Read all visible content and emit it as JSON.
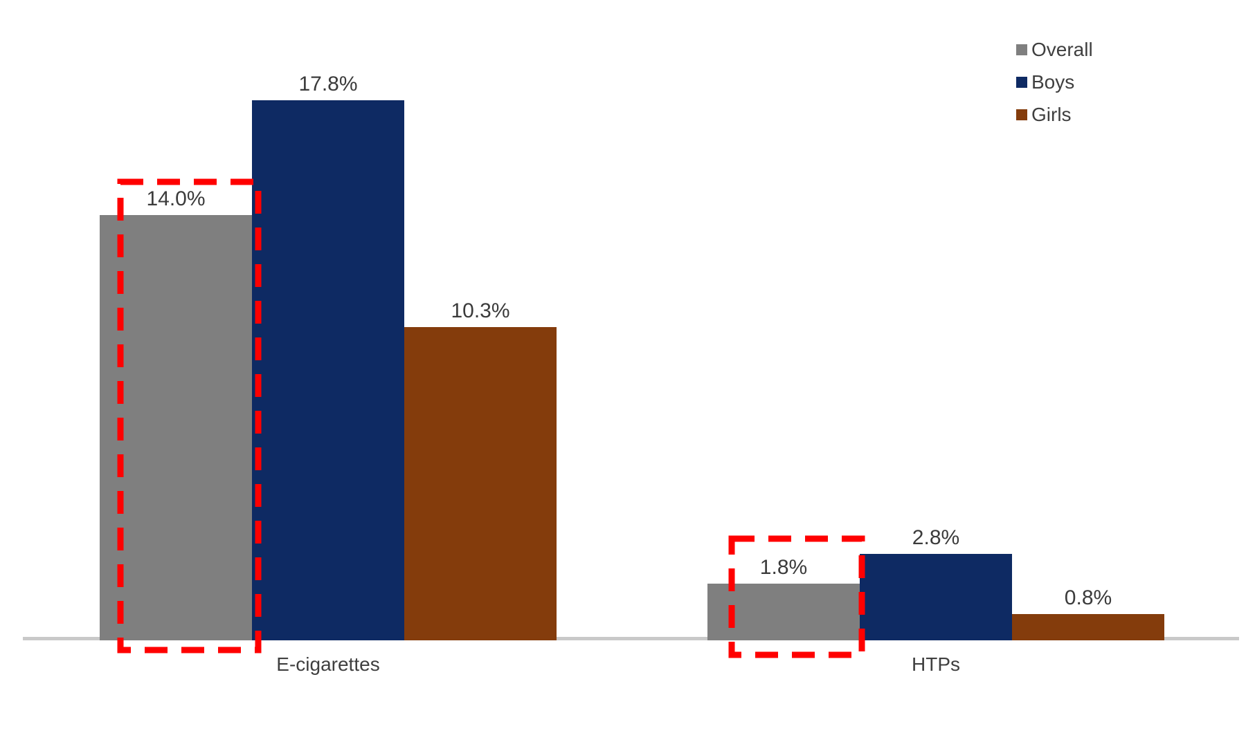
{
  "chart_data": {
    "type": "bar",
    "title": "",
    "xlabel": "",
    "ylabel": "",
    "categories": [
      "E-cigarettes",
      "HTPs"
    ],
    "series": [
      {
        "name": "Overall",
        "color": "#7f7f7f",
        "values": [
          14.0,
          1.8
        ],
        "labels": [
          "14.0%",
          "1.8%"
        ]
      },
      {
        "name": "Boys",
        "color": "#0e2a63",
        "values": [
          17.8,
          2.8
        ],
        "labels": [
          "17.8%",
          "2.8%"
        ]
      },
      {
        "name": "Girls",
        "color": "#843c0c",
        "values": [
          10.3,
          0.8
        ],
        "labels": [
          "10.3%",
          "0.8%"
        ]
      }
    ],
    "ylim": [
      0,
      19
    ],
    "grid": false,
    "y_axis_visible": false,
    "axis_line_color": "#c9c9c9",
    "label_color": "#3b3b3b",
    "legend": {
      "position": "top-right",
      "entries": [
        "Overall",
        "Boys",
        "Girls"
      ]
    },
    "annotations": [
      {
        "type": "dashed-box",
        "color": "#ff0000",
        "target_category": "E-cigarettes",
        "target_series": "Overall"
      },
      {
        "type": "dashed-box",
        "color": "#ff0000",
        "target_category": "HTPs",
        "target_series": "Overall"
      }
    ]
  }
}
